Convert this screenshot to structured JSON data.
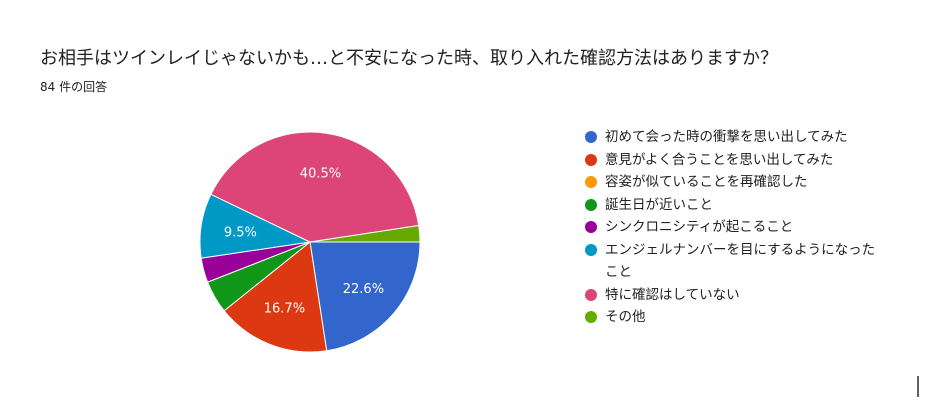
{
  "header": {
    "title": "お相手はツインレイじゃないかも…と不安になった時、取り入れた確認方法はありますか？",
    "response_count": "84 件の回答"
  },
  "chart_data": {
    "type": "pie",
    "total": 84,
    "legend_position": "right",
    "slices": [
      {
        "label": "初めて会った時の衝撃を思い出してみた",
        "value": 22.6,
        "color": "#3366cc",
        "data_label": "22.6%"
      },
      {
        "label": "意見がよく合うことを思い出してみた",
        "value": 16.7,
        "color": "#dc3912",
        "data_label": "16.7%"
      },
      {
        "label": "容姿が似ていることを再確認した",
        "value": 0,
        "color": "#ff9900",
        "data_label": ""
      },
      {
        "label": "誕生日が近いこと",
        "value": 4.8,
        "color": "#109618",
        "data_label": ""
      },
      {
        "label": "シンクロニシティが起こること",
        "value": 3.6,
        "color": "#990099",
        "data_label": ""
      },
      {
        "label": "エンジェルナンバーを目にするようになったこと",
        "value": 9.5,
        "color": "#0099c6",
        "data_label": "9.5%"
      },
      {
        "label": "特に確認はしていない",
        "value": 40.5,
        "color": "#dd4477",
        "data_label": "40.5%"
      },
      {
        "label": "その他",
        "value": 2.4,
        "color": "#66aa00",
        "data_label": ""
      }
    ]
  }
}
